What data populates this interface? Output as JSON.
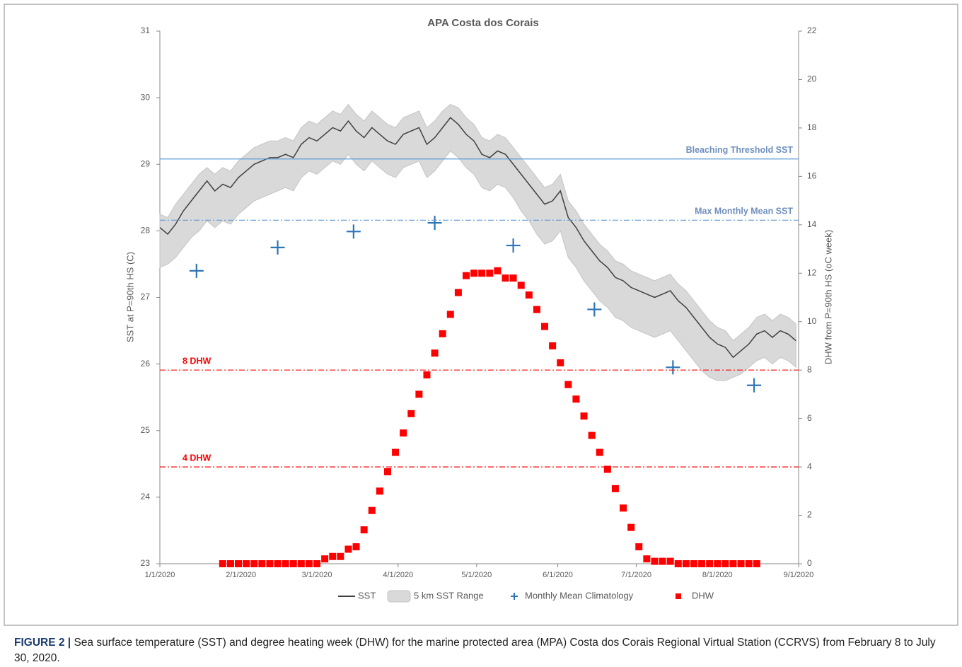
{
  "chart_data": {
    "type": "line",
    "title": "APA Costa dos Corais",
    "ylabel": "SST at P=90th HS (C)",
    "y2label": "DHW from P=90th HS (oC week)",
    "caption_label": "FIGURE 2 |",
    "caption": "Sea surface temperature (SST) and degree heating week (DHW) for the marine protected area (MPA) Costa dos Corais Regional Virtual Station (CCRVS) from February 8 to July 30, 2020.",
    "xlim": [
      "2020-01-01",
      "2020-09-01"
    ],
    "xticks": [
      {
        "value": "2020-01-01",
        "label": "1/1/2020"
      },
      {
        "value": "2020-02-01",
        "label": "2/1/2020"
      },
      {
        "value": "2020-03-01",
        "label": "3/1/2020"
      },
      {
        "value": "2020-04-01",
        "label": "4/1/2020"
      },
      {
        "value": "2020-05-01",
        "label": "5/1/2020"
      },
      {
        "value": "2020-06-01",
        "label": "6/1/2020"
      },
      {
        "value": "2020-07-01",
        "label": "7/1/2020"
      },
      {
        "value": "2020-08-01",
        "label": "8/1/2020"
      },
      {
        "value": "2020-09-01",
        "label": "9/1/2020"
      }
    ],
    "ylim": [
      23,
      31
    ],
    "yticks": [
      23,
      24,
      25,
      26,
      27,
      28,
      29,
      30,
      31
    ],
    "y2lim": [
      0,
      22
    ],
    "y2ticks": [
      0,
      2,
      4,
      6,
      8,
      10,
      12,
      14,
      16,
      18,
      20,
      22
    ],
    "x": [
      "2020-01-01",
      "2020-01-04",
      "2020-01-07",
      "2020-01-10",
      "2020-01-13",
      "2020-01-16",
      "2020-01-19",
      "2020-01-22",
      "2020-01-25",
      "2020-01-28",
      "2020-01-31",
      "2020-02-03",
      "2020-02-06",
      "2020-02-09",
      "2020-02-12",
      "2020-02-15",
      "2020-02-18",
      "2020-02-21",
      "2020-02-24",
      "2020-02-27",
      "2020-03-01",
      "2020-03-04",
      "2020-03-07",
      "2020-03-10",
      "2020-03-13",
      "2020-03-16",
      "2020-03-19",
      "2020-03-22",
      "2020-03-25",
      "2020-03-28",
      "2020-03-31",
      "2020-04-03",
      "2020-04-06",
      "2020-04-09",
      "2020-04-12",
      "2020-04-15",
      "2020-04-18",
      "2020-04-21",
      "2020-04-24",
      "2020-04-27",
      "2020-04-30",
      "2020-05-03",
      "2020-05-06",
      "2020-05-09",
      "2020-05-12",
      "2020-05-15",
      "2020-05-18",
      "2020-05-21",
      "2020-05-24",
      "2020-05-27",
      "2020-05-30",
      "2020-06-02",
      "2020-06-05",
      "2020-06-08",
      "2020-06-11",
      "2020-06-14",
      "2020-06-17",
      "2020-06-20",
      "2020-06-23",
      "2020-06-26",
      "2020-06-29",
      "2020-07-02",
      "2020-07-05",
      "2020-07-08",
      "2020-07-11",
      "2020-07-14",
      "2020-07-17",
      "2020-07-20",
      "2020-07-23",
      "2020-07-26",
      "2020-07-29",
      "2020-08-01",
      "2020-08-04",
      "2020-08-07",
      "2020-08-10",
      "2020-08-13",
      "2020-08-16",
      "2020-08-19",
      "2020-08-22",
      "2020-08-25",
      "2020-08-28",
      "2020-08-31"
    ],
    "series": [
      {
        "name": "SST",
        "kind": "line",
        "color": "#404040",
        "values": [
          28.05,
          27.95,
          28.1,
          28.3,
          28.45,
          28.6,
          28.75,
          28.6,
          28.7,
          28.65,
          28.8,
          28.9,
          29.0,
          29.05,
          29.1,
          29.1,
          29.15,
          29.1,
          29.3,
          29.4,
          29.35,
          29.45,
          29.55,
          29.5,
          29.65,
          29.5,
          29.4,
          29.55,
          29.45,
          29.35,
          29.3,
          29.45,
          29.5,
          29.55,
          29.3,
          29.4,
          29.55,
          29.7,
          29.6,
          29.45,
          29.35,
          29.15,
          29.1,
          29.2,
          29.15,
          29.0,
          28.85,
          28.7,
          28.55,
          28.4,
          28.45,
          28.6,
          28.2,
          28.05,
          27.85,
          27.7,
          27.55,
          27.45,
          27.3,
          27.25,
          27.15,
          27.1,
          27.05,
          27.0,
          27.05,
          27.1,
          26.95,
          26.85,
          26.7,
          26.55,
          26.4,
          26.3,
          26.25,
          26.1,
          26.2,
          26.3,
          26.45,
          26.5,
          26.4,
          26.5,
          26.45,
          26.35
        ]
      },
      {
        "name": "5 km SST Range",
        "kind": "band",
        "color": "#d9d9d9",
        "values": [
          28.25,
          28.2,
          28.4,
          28.55,
          28.7,
          28.85,
          28.95,
          28.85,
          28.95,
          28.9,
          29.05,
          29.15,
          29.25,
          29.3,
          29.35,
          29.35,
          29.4,
          29.35,
          29.55,
          29.65,
          29.6,
          29.7,
          29.8,
          29.75,
          29.9,
          29.75,
          29.65,
          29.8,
          29.7,
          29.6,
          29.55,
          29.7,
          29.75,
          29.8,
          29.55,
          29.65,
          29.8,
          29.9,
          29.85,
          29.7,
          29.6,
          29.4,
          29.35,
          29.45,
          29.4,
          29.25,
          29.1,
          28.95,
          28.8,
          28.65,
          28.7,
          28.85,
          28.45,
          28.3,
          28.1,
          27.95,
          27.8,
          27.7,
          27.55,
          27.5,
          27.4,
          27.35,
          27.3,
          27.25,
          27.3,
          27.35,
          27.2,
          27.1,
          26.95,
          26.8,
          26.65,
          26.55,
          26.5,
          26.35,
          26.45,
          26.55,
          26.7,
          26.75,
          26.65,
          26.75,
          26.7,
          26.6
        ],
        "min": [
          27.45,
          27.5,
          27.6,
          27.75,
          27.9,
          28.0,
          28.15,
          28.05,
          28.15,
          28.1,
          28.25,
          28.35,
          28.45,
          28.5,
          28.55,
          28.6,
          28.65,
          28.6,
          28.8,
          28.9,
          28.85,
          28.95,
          29.05,
          29.0,
          29.15,
          29.0,
          28.9,
          29.05,
          28.95,
          28.85,
          28.8,
          28.95,
          29.0,
          29.05,
          28.8,
          28.9,
          29.05,
          29.2,
          29.1,
          28.95,
          28.85,
          28.65,
          28.6,
          28.7,
          28.65,
          28.5,
          28.3,
          28.15,
          27.95,
          27.8,
          27.85,
          28.0,
          27.6,
          27.45,
          27.25,
          27.1,
          26.95,
          26.85,
          26.7,
          26.65,
          26.55,
          26.5,
          26.45,
          26.4,
          26.45,
          26.5,
          26.35,
          26.2,
          26.05,
          25.9,
          25.8,
          25.75,
          25.75,
          25.8,
          25.85,
          25.95,
          26.05,
          26.1,
          26.0,
          26.1,
          26.05,
          25.95
        ]
      },
      {
        "name": "Monthly Mean Climatology",
        "kind": "plus",
        "color": "#2e75b6",
        "x": [
          "2020-01-15",
          "2020-02-15",
          "2020-03-15",
          "2020-04-15",
          "2020-05-15",
          "2020-06-15",
          "2020-07-15",
          "2020-08-15"
        ],
        "values": [
          27.4,
          27.75,
          27.99,
          28.12,
          27.78,
          26.82,
          25.95,
          25.68
        ]
      },
      {
        "name": "DHW",
        "kind": "square",
        "color": "#ff0000",
        "axis": "y2",
        "values": [
          null,
          null,
          null,
          null,
          null,
          null,
          null,
          null,
          0,
          0,
          0,
          0,
          0,
          0,
          0,
          0,
          0,
          0,
          0,
          0,
          0,
          0.2,
          0.3,
          0.3,
          0.6,
          0.7,
          1.4,
          2.2,
          3.0,
          3.8,
          4.6,
          5.4,
          6.2,
          7.0,
          7.8,
          8.7,
          9.5,
          10.3,
          11.2,
          11.9,
          12.0,
          12.0,
          12.0,
          12.1,
          11.8,
          11.8,
          11.5,
          11.1,
          10.5,
          9.8,
          9.0,
          8.3,
          7.4,
          6.8,
          6.1,
          5.3,
          4.6,
          3.9,
          3.1,
          2.3,
          1.5,
          0.7,
          0.2,
          0.1,
          0.1,
          0.1,
          0,
          0,
          0,
          0,
          0,
          0,
          0,
          0,
          0,
          0,
          0,
          null,
          null,
          null,
          null,
          null
        ]
      }
    ],
    "reference_lines": [
      {
        "label": "Bleaching Threshold SST",
        "value": 29.08,
        "color": "#5b9bd5",
        "style": "solid"
      },
      {
        "label": "Max Monthly Mean SST",
        "value": 28.16,
        "color": "#5b9bd5",
        "style": "dashdot"
      },
      {
        "label": "8 DHW",
        "value": 8,
        "axis": "y2",
        "color": "#ff0000",
        "style": "dashdot"
      },
      {
        "label": "4 DHW",
        "value": 4,
        "axis": "y2",
        "color": "#ff0000",
        "style": "dashdot"
      }
    ]
  }
}
